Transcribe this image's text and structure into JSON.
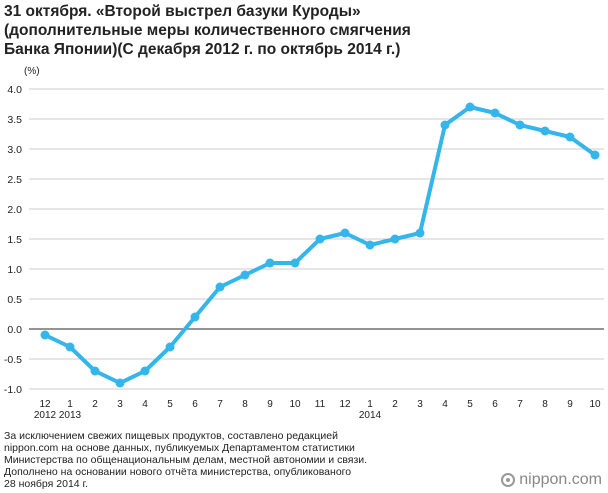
{
  "title_lines": [
    "31 октября. «Второй выстрел базуки Куроды»",
    "(дополнительные меры количественного смягчения",
    "Банка Японии)(С декабря 2012 г. по октябрь 2014 г.)"
  ],
  "footnote_lines": [
    "За исключением свежих пищевых продуктов, составлено редакцией",
    "nippon.com на основе данных, публикуемых Департаментом статистики",
    "Министерства по общенациональным делам, местной автономии и связи.",
    "Дополнено на основании нового отчёта министерства, опубликованого",
    "28 ноября 2014 г."
  ],
  "brand": "nippon.com",
  "colors": {
    "line": "#35b6ea",
    "zero_line": "#555555",
    "grid": "#cccccc"
  },
  "chart_data": {
    "type": "line",
    "ylabel": "(%)",
    "ylim": [
      -1.0,
      4.0
    ],
    "yticks": [
      "4.0",
      "3.5",
      "3.0",
      "2.5",
      "2.0",
      "1.5",
      "1.0",
      "0.5",
      "0.0",
      "-0.5",
      "-1.0"
    ],
    "grid": true,
    "categories": [
      "12",
      "1",
      "2",
      "3",
      "4",
      "5",
      "6",
      "7",
      "8",
      "9",
      "10",
      "11",
      "12",
      "1",
      "2",
      "3",
      "4",
      "5",
      "6",
      "7",
      "8",
      "9",
      "10"
    ],
    "year_labels": [
      {
        "index": 0,
        "label": "2012"
      },
      {
        "index": 1,
        "label": "2013"
      },
      {
        "index": 13,
        "label": "2014"
      }
    ],
    "values": [
      -0.1,
      -0.3,
      -0.7,
      -0.9,
      -0.7,
      -0.3,
      0.2,
      0.7,
      0.9,
      1.1,
      1.1,
      1.5,
      1.6,
      1.4,
      1.5,
      1.6,
      3.4,
      3.7,
      3.6,
      3.4,
      3.3,
      3.2,
      2.9
    ]
  }
}
